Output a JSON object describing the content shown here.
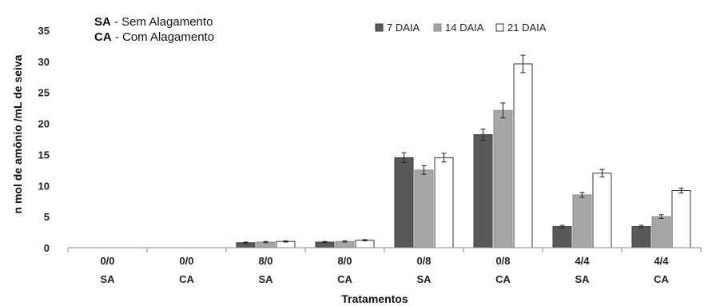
{
  "chart_data": {
    "type": "bar",
    "ylabel": "n mol de amônio /mL de seiva",
    "xlabel": "Tratamentos",
    "ylim": [
      0,
      35
    ],
    "yticks": [
      0,
      5,
      10,
      15,
      20,
      25,
      30,
      35
    ],
    "grid": false,
    "legend_position": "top-right",
    "categories": [
      [
        "0/0",
        "SA"
      ],
      [
        "0/0",
        "CA"
      ],
      [
        "8/0",
        "SA"
      ],
      [
        "8/0",
        "CA"
      ],
      [
        "0/8",
        "SA"
      ],
      [
        "0/8",
        "CA"
      ],
      [
        "4/4",
        "SA"
      ],
      [
        "4/4",
        "CA"
      ]
    ],
    "series": [
      {
        "name": "7 DAIA",
        "color": "#595959",
        "stroke": "#3a3a3a",
        "values": [
          0,
          0,
          0.8,
          0.9,
          14.5,
          18.2,
          3.4,
          3.4
        ],
        "errors": [
          0,
          0,
          0.1,
          0.1,
          0.8,
          0.9,
          0.2,
          0.2
        ]
      },
      {
        "name": "14 DAIA",
        "color": "#a6a6a6",
        "stroke": "#8a8a8a",
        "values": [
          0,
          0,
          0.9,
          1.0,
          12.5,
          22.1,
          8.5,
          5.0
        ],
        "errors": [
          0,
          0,
          0.1,
          0.1,
          0.7,
          1.2,
          0.4,
          0.3
        ]
      },
      {
        "name": "21 DAIA",
        "color": "#ffffff",
        "stroke": "#333333",
        "values": [
          0,
          0,
          1.0,
          1.2,
          14.5,
          29.6,
          12.0,
          9.2
        ],
        "errors": [
          0,
          0,
          0.1,
          0.1,
          0.7,
          1.4,
          0.6,
          0.4
        ]
      }
    ]
  },
  "notes": [
    {
      "key": "SA",
      "text": " - Sem Alagamento"
    },
    {
      "key": "CA",
      "text": " - Com Alagamento"
    }
  ]
}
